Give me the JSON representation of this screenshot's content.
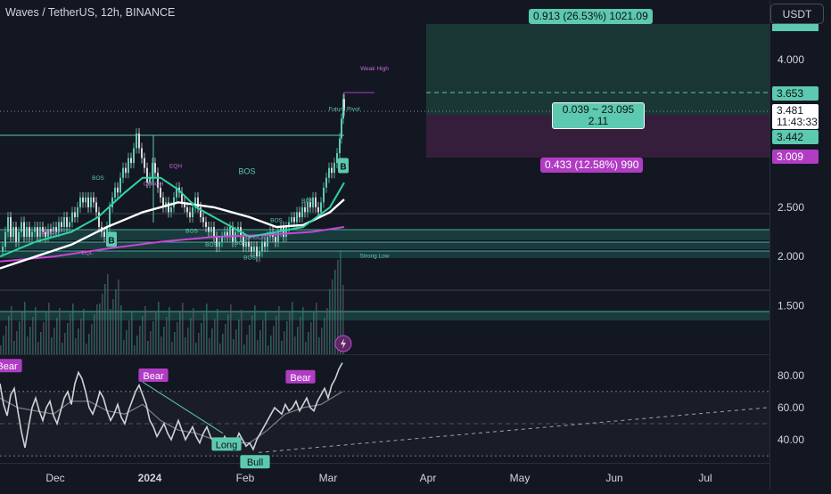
{
  "header": {
    "title": "Waves / TetherUS, 12h, BINANCE",
    "currency_button": "USDT"
  },
  "colors": {
    "background": "#131722",
    "teal": "#5cc9b0",
    "magenta": "#b13cc4",
    "ema_fast": "#2ed4a4",
    "ema_mid": "#ffffff",
    "ema_slow": "#c845d6",
    "candle_up": "#5cc9b0",
    "candle_down": "#d8d8d8"
  },
  "position_tool": {
    "target_label": "0.913 (26.53%) 1021.09",
    "stop_label": "0.433 (12.58%) 990",
    "ratio_line1": "0.039 ~ 23.095",
    "ratio_line2": "2.11",
    "entry_price": "3.653",
    "current_price": "3.481",
    "countdown": "11:43:33",
    "close_price": "3.442",
    "stop_price": "3.009"
  },
  "chart_data": [
    {
      "type": "candlestick",
      "title": "",
      "price_axis": {
        "ticks": [
          "4.000",
          "3.500",
          "3.000",
          "2.500",
          "2.000",
          "1.500"
        ],
        "ylim": [
          1.3,
          4.4
        ]
      },
      "time_axis": {
        "labels": [
          "Dec",
          "2024",
          "Feb",
          "Mar",
          "Apr",
          "May",
          "Jun",
          "Jul"
        ]
      },
      "price_path": [
        [
          0,
          2.05
        ],
        [
          3,
          2.1
        ],
        [
          6,
          2.25
        ],
        [
          9,
          2.4
        ],
        [
          12,
          2.2
        ],
        [
          15,
          2.3
        ],
        [
          18,
          2.15
        ],
        [
          21,
          2.25
        ],
        [
          24,
          2.35
        ],
        [
          27,
          2.2
        ],
        [
          30,
          2.3
        ],
        [
          33,
          2.2
        ],
        [
          36,
          2.25
        ],
        [
          39,
          2.3
        ],
        [
          42,
          2.2
        ],
        [
          45,
          2.3
        ],
        [
          48,
          2.25
        ],
        [
          51,
          2.2
        ],
        [
          54,
          2.28
        ],
        [
          57,
          2.25
        ],
        [
          60,
          2.3
        ],
        [
          63,
          2.25
        ],
        [
          66,
          2.35
        ],
        [
          69,
          2.3
        ],
        [
          72,
          2.4
        ],
        [
          75,
          2.3
        ],
        [
          78,
          2.35
        ],
        [
          81,
          2.45
        ],
        [
          84,
          2.4
        ],
        [
          87,
          2.5
        ],
        [
          90,
          2.6
        ],
        [
          93,
          2.55
        ],
        [
          96,
          2.6
        ],
        [
          99,
          2.5
        ],
        [
          102,
          2.6
        ],
        [
          105,
          2.55
        ],
        [
          108,
          2.45
        ],
        [
          111,
          2.3
        ],
        [
          114,
          2.25
        ],
        [
          117,
          2.2
        ],
        [
          120,
          2.3
        ],
        [
          123,
          2.5
        ],
        [
          126,
          2.6
        ],
        [
          129,
          2.7
        ],
        [
          132,
          2.65
        ],
        [
          135,
          2.8
        ],
        [
          138,
          2.9
        ],
        [
          141,
          2.85
        ],
        [
          144,
          3.0
        ],
        [
          147,
          2.95
        ],
        [
          150,
          3.1
        ],
        [
          153,
          3.25
        ],
        [
          156,
          3.1
        ],
        [
          159,
          3.0
        ],
        [
          162,
          2.9
        ],
        [
          165,
          2.75
        ],
        [
          168,
          2.8
        ],
        [
          171,
          2.95
        ],
        [
          174,
          2.85
        ],
        [
          177,
          2.7
        ],
        [
          180,
          2.6
        ],
        [
          183,
          2.5
        ],
        [
          186,
          2.55
        ],
        [
          189,
          2.45
        ],
        [
          192,
          2.5
        ],
        [
          195,
          2.6
        ],
        [
          198,
          2.7
        ],
        [
          201,
          2.65
        ],
        [
          204,
          2.55
        ],
        [
          207,
          2.5
        ],
        [
          210,
          2.45
        ],
        [
          213,
          2.4
        ],
        [
          216,
          2.5
        ],
        [
          219,
          2.6
        ],
        [
          222,
          2.5
        ],
        [
          225,
          2.4
        ],
        [
          228,
          2.35
        ],
        [
          231,
          2.3
        ],
        [
          234,
          2.25
        ],
        [
          237,
          2.3
        ],
        [
          240,
          2.2
        ],
        [
          243,
          2.1
        ],
        [
          246,
          2.15
        ],
        [
          249,
          2.2
        ],
        [
          252,
          2.25
        ],
        [
          255,
          2.2
        ],
        [
          258,
          2.3
        ],
        [
          261,
          2.15
        ],
        [
          264,
          2.25
        ],
        [
          267,
          2.3
        ],
        [
          270,
          2.2
        ],
        [
          273,
          2.1
        ],
        [
          276,
          2.15
        ],
        [
          279,
          2.1
        ],
        [
          282,
          2.05
        ],
        [
          285,
          2.1
        ],
        [
          288,
          2.0
        ],
        [
          291,
          2.05
        ],
        [
          294,
          2.15
        ],
        [
          297,
          2.1
        ],
        [
          300,
          2.2
        ],
        [
          303,
          2.25
        ],
        [
          306,
          2.2
        ],
        [
          309,
          2.15
        ],
        [
          312,
          2.25
        ],
        [
          315,
          2.3
        ],
        [
          318,
          2.2
        ],
        [
          321,
          2.3
        ],
        [
          324,
          2.35
        ],
        [
          327,
          2.4
        ],
        [
          330,
          2.35
        ],
        [
          333,
          2.45
        ],
        [
          336,
          2.4
        ],
        [
          339,
          2.5
        ],
        [
          342,
          2.45
        ],
        [
          345,
          2.55
        ],
        [
          348,
          2.5
        ],
        [
          351,
          2.6
        ],
        [
          354,
          2.5
        ],
        [
          357,
          2.45
        ],
        [
          360,
          2.55
        ],
        [
          363,
          2.7
        ],
        [
          366,
          2.8
        ],
        [
          369,
          2.9
        ],
        [
          372,
          2.85
        ],
        [
          375,
          2.95
        ],
        [
          378,
          3.05
        ],
        [
          381,
          3.2
        ],
        [
          383,
          3.4
        ],
        [
          385,
          3.6
        ],
        [
          386,
          3.481
        ]
      ],
      "indicators": {
        "ema_fast": [
          [
            0,
            2.0
          ],
          [
            40,
            2.15
          ],
          [
            80,
            2.25
          ],
          [
            110,
            2.4
          ],
          [
            140,
            2.65
          ],
          [
            160,
            2.8
          ],
          [
            180,
            2.8
          ],
          [
            200,
            2.68
          ],
          [
            220,
            2.5
          ],
          [
            250,
            2.35
          ],
          [
            280,
            2.2
          ],
          [
            310,
            2.25
          ],
          [
            340,
            2.3
          ],
          [
            370,
            2.5
          ],
          [
            386,
            2.75
          ]
        ],
        "ema_mid": [
          [
            0,
            1.88
          ],
          [
            40,
            2.0
          ],
          [
            80,
            2.12
          ],
          [
            120,
            2.3
          ],
          [
            160,
            2.45
          ],
          [
            200,
            2.55
          ],
          [
            240,
            2.5
          ],
          [
            280,
            2.4
          ],
          [
            310,
            2.3
          ],
          [
            340,
            2.32
          ],
          [
            370,
            2.45
          ],
          [
            386,
            2.58
          ]
        ],
        "ema_slow": [
          [
            0,
            1.95
          ],
          [
            60,
            2.0
          ],
          [
            120,
            2.08
          ],
          [
            180,
            2.15
          ],
          [
            240,
            2.2
          ],
          [
            300,
            2.22
          ],
          [
            350,
            2.25
          ],
          [
            386,
            2.3
          ]
        ]
      },
      "annotations": [
        {
          "text": "BOS",
          "x": 110,
          "y": 2.78
        },
        {
          "text": "EQH",
          "x": 197,
          "y": 2.9
        },
        {
          "text": "CHoCH",
          "x": 172,
          "y": 2.72
        },
        {
          "text": "CHoCH",
          "x": 55,
          "y": 2.23
        },
        {
          "text": "BOS",
          "x": 277,
          "y": 2.84
        },
        {
          "text": "BOS",
          "x": 215,
          "y": 2.24
        },
        {
          "text": "BOS",
          "x": 237,
          "y": 2.1
        },
        {
          "text": "BOS",
          "x": 270,
          "y": 2.12
        },
        {
          "text": "BOS",
          "x": 310,
          "y": 2.35
        },
        {
          "text": "BOS",
          "x": 345,
          "y": 2.55
        },
        {
          "text": "BOS",
          "x": 280,
          "y": 1.97
        },
        {
          "text": "EQL",
          "x": 98,
          "y": 2.02
        },
        {
          "text": "CHoCH",
          "x": 287,
          "y": 2.18
        },
        {
          "text": "Future Pivot",
          "x": 386,
          "y": 3.48
        },
        {
          "text": "Weak High",
          "x": 420,
          "y": 3.89
        },
        {
          "text": "Strong Low",
          "x": 420,
          "y": 1.99
        }
      ],
      "signals": [
        {
          "letter": "B",
          "x": 125,
          "y": 2.17,
          "color": "#5cc9b0"
        },
        {
          "letter": "B",
          "x": 385,
          "y": 2.92,
          "color": "#5cc9b0"
        }
      ]
    },
    {
      "type": "line",
      "title": "",
      "y_axis": {
        "ticks": [
          "80.00",
          "60.00",
          "40.00"
        ],
        "ylim": [
          25,
          95
        ]
      },
      "levels": [
        70,
        50,
        30
      ],
      "oscillator": [
        [
          0,
          75
        ],
        [
          4,
          62
        ],
        [
          8,
          55
        ],
        [
          12,
          68
        ],
        [
          16,
          72
        ],
        [
          20,
          58
        ],
        [
          24,
          45
        ],
        [
          28,
          35
        ],
        [
          32,
          48
        ],
        [
          36,
          60
        ],
        [
          40,
          66
        ],
        [
          44,
          58
        ],
        [
          48,
          52
        ],
        [
          52,
          60
        ],
        [
          56,
          64
        ],
        [
          60,
          55
        ],
        [
          64,
          50
        ],
        [
          68,
          58
        ],
        [
          72,
          66
        ],
        [
          76,
          70
        ],
        [
          80,
          62
        ],
        [
          84,
          75
        ],
        [
          88,
          82
        ],
        [
          92,
          78
        ],
        [
          96,
          70
        ],
        [
          100,
          60
        ],
        [
          104,
          56
        ],
        [
          108,
          62
        ],
        [
          112,
          70
        ],
        [
          116,
          66
        ],
        [
          120,
          58
        ],
        [
          124,
          52
        ],
        [
          128,
          56
        ],
        [
          132,
          62
        ],
        [
          136,
          54
        ],
        [
          140,
          50
        ],
        [
          144,
          58
        ],
        [
          148,
          64
        ],
        [
          152,
          70
        ],
        [
          156,
          74
        ],
        [
          160,
          68
        ],
        [
          164,
          62
        ],
        [
          168,
          52
        ],
        [
          172,
          48
        ],
        [
          176,
          42
        ],
        [
          180,
          46
        ],
        [
          184,
          50
        ],
        [
          188,
          44
        ],
        [
          192,
          40
        ],
        [
          196,
          46
        ],
        [
          200,
          52
        ],
        [
          204,
          46
        ],
        [
          208,
          40
        ],
        [
          212,
          44
        ],
        [
          216,
          48
        ],
        [
          220,
          42
        ],
        [
          224,
          38
        ],
        [
          228,
          44
        ],
        [
          232,
          48
        ],
        [
          236,
          42
        ],
        [
          240,
          38
        ],
        [
          244,
          40
        ],
        [
          248,
          36
        ],
        [
          252,
          42
        ],
        [
          256,
          38
        ],
        [
          260,
          34
        ],
        [
          264,
          38
        ],
        [
          268,
          44
        ],
        [
          272,
          40
        ],
        [
          276,
          36
        ],
        [
          280,
          38
        ],
        [
          284,
          34
        ],
        [
          288,
          40
        ],
        [
          292,
          44
        ],
        [
          296,
          48
        ],
        [
          300,
          52
        ],
        [
          304,
          56
        ],
        [
          308,
          60
        ],
        [
          312,
          58
        ],
        [
          316,
          56
        ],
        [
          320,
          62
        ],
        [
          324,
          58
        ],
        [
          328,
          60
        ],
        [
          332,
          64
        ],
        [
          336,
          58
        ],
        [
          340,
          62
        ],
        [
          344,
          66
        ],
        [
          348,
          60
        ],
        [
          352,
          58
        ],
        [
          356,
          64
        ],
        [
          360,
          68
        ],
        [
          364,
          72
        ],
        [
          368,
          66
        ],
        [
          372,
          74
        ],
        [
          376,
          78
        ],
        [
          380,
          84
        ],
        [
          384,
          88
        ]
      ],
      "signal_line": [
        [
          0,
          66
        ],
        [
          20,
          60
        ],
        [
          40,
          58
        ],
        [
          60,
          56
        ],
        [
          80,
          64
        ],
        [
          100,
          64
        ],
        [
          120,
          58
        ],
        [
          140,
          56
        ],
        [
          160,
          62
        ],
        [
          180,
          52
        ],
        [
          200,
          46
        ],
        [
          220,
          44
        ],
        [
          240,
          40
        ],
        [
          260,
          38
        ],
        [
          280,
          38
        ],
        [
          300,
          46
        ],
        [
          320,
          56
        ],
        [
          340,
          60
        ],
        [
          360,
          62
        ],
        [
          384,
          70
        ]
      ],
      "labels": [
        {
          "text": "Bear",
          "x": 8,
          "y": 86,
          "color": "#b13cc4"
        },
        {
          "text": "Bear",
          "x": 172,
          "y": 80,
          "color": "#b13cc4"
        },
        {
          "text": "Bear",
          "x": 337,
          "y": 79,
          "color": "#b13cc4"
        },
        {
          "text": "Long",
          "x": 254,
          "y": 37,
          "color": "#5cc9b0"
        },
        {
          "text": "Bull",
          "x": 286,
          "y": 26,
          "color": "#5cc9b0"
        }
      ]
    }
  ]
}
